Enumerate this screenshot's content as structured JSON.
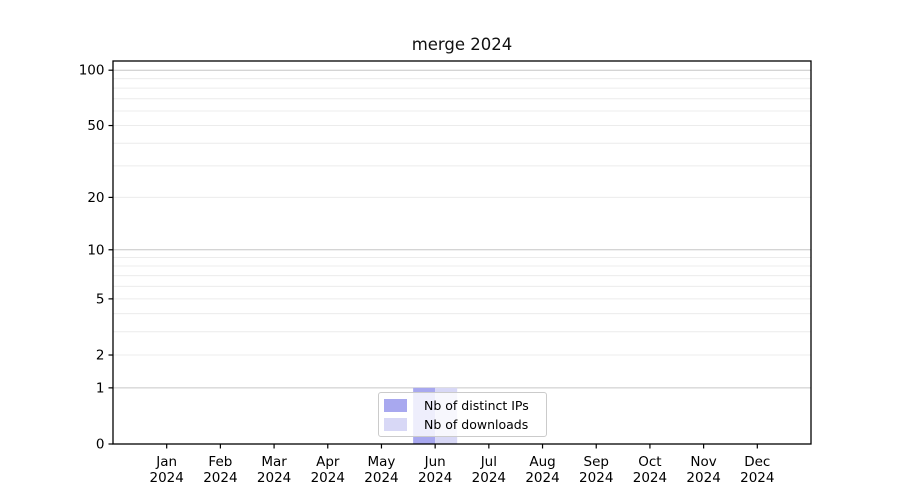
{
  "chart_data": {
    "type": "bar",
    "title": "merge 2024",
    "year_label": "2024",
    "months": [
      "Jan",
      "Feb",
      "Mar",
      "Apr",
      "May",
      "Jun",
      "Jul",
      "Aug",
      "Sep",
      "Oct",
      "Nov",
      "Dec"
    ],
    "series": [
      {
        "name": "Nb of distinct IPs",
        "color": "#a8a8ef",
        "values": [
          0,
          0,
          0,
          0,
          0,
          1,
          0,
          0,
          0,
          0,
          0,
          0
        ]
      },
      {
        "name": "Nb of downloads",
        "color": "#d8d8f6",
        "values": [
          0,
          0,
          0,
          0,
          0,
          1,
          0,
          0,
          0,
          0,
          0,
          0
        ]
      }
    ],
    "y_scale": "log1p",
    "y_ticks": [
      0,
      1,
      2,
      5,
      10,
      20,
      50,
      100
    ],
    "y_major_grid": [
      1,
      10,
      100
    ],
    "y_minor_grid": [
      2,
      3,
      4,
      5,
      6,
      7,
      8,
      9,
      20,
      30,
      40,
      50,
      60,
      70,
      80,
      90
    ],
    "ylim": [
      0,
      112
    ],
    "grid": true,
    "legend_position": "lower center",
    "colors": {
      "axis": "#000000",
      "major_grid": "#c6c6c6",
      "minor_grid": "#ececec",
      "legend_border": "#cbcbcb",
      "background": "#ffffff"
    }
  }
}
